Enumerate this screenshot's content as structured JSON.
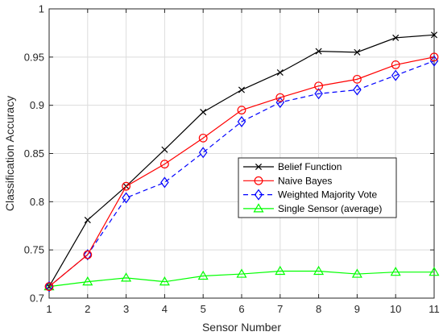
{
  "chart_data": {
    "type": "line",
    "title": "",
    "xlabel": "Sensor Number",
    "ylabel": "Classification Accuracy",
    "xlim": [
      1,
      11
    ],
    "ylim": [
      0.7,
      1.0
    ],
    "x": [
      1,
      2,
      3,
      4,
      5,
      6,
      7,
      8,
      9,
      10,
      11
    ],
    "x_ticks": [
      "1",
      "2",
      "3",
      "4",
      "5",
      "6",
      "7",
      "8",
      "9",
      "10",
      "11"
    ],
    "y_ticks": [
      "0.7",
      "0.75",
      "0.8",
      "0.85",
      "0.9",
      "0.95",
      "1"
    ],
    "grid": true,
    "legend_position": "center-right",
    "series": [
      {
        "name": "Belief Function",
        "color": "#000000",
        "marker": "x",
        "line_style": "solid",
        "values": [
          0.712,
          0.781,
          0.816,
          0.854,
          0.893,
          0.916,
          0.934,
          0.956,
          0.955,
          0.97,
          0.973
        ]
      },
      {
        "name": "Naive Bayes",
        "color": "#ff0000",
        "marker": "circle",
        "line_style": "solid",
        "values": [
          0.712,
          0.745,
          0.816,
          0.839,
          0.866,
          0.895,
          0.908,
          0.92,
          0.927,
          0.942,
          0.95
        ]
      },
      {
        "name": "Weighted Majority Vote",
        "color": "#0000ff",
        "marker": "diamond",
        "line_style": "dashed",
        "values": [
          0.712,
          0.745,
          0.804,
          0.82,
          0.851,
          0.883,
          0.903,
          0.912,
          0.916,
          0.931,
          0.946
        ]
      },
      {
        "name": "Single Sensor (average)",
        "color": "#00ff00",
        "marker": "triangle",
        "line_style": "solid",
        "values": [
          0.712,
          0.717,
          0.721,
          0.717,
          0.723,
          0.725,
          0.728,
          0.728,
          0.725,
          0.727,
          0.727
        ]
      }
    ]
  }
}
